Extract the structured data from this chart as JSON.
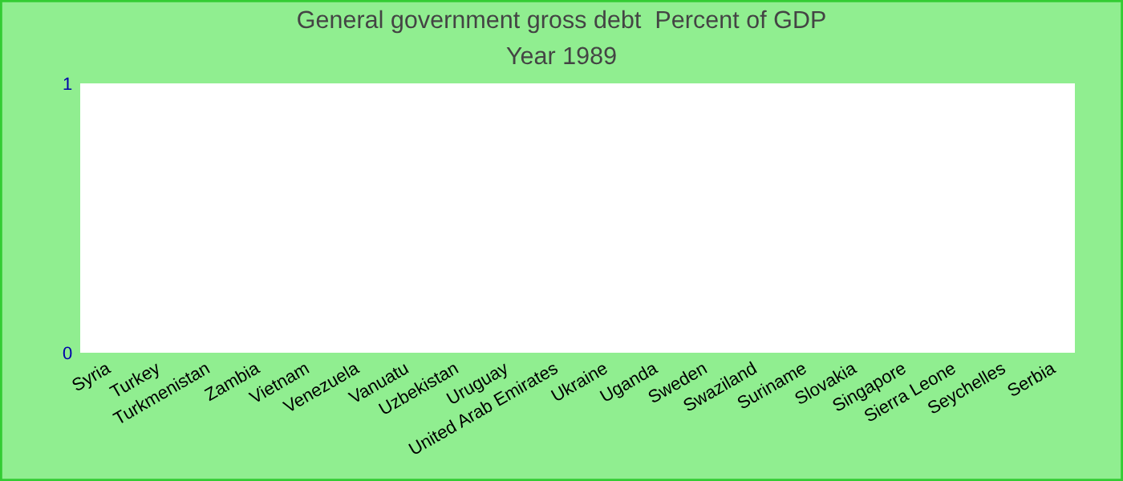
{
  "chart_data": {
    "type": "bar",
    "title": "General government gross debt  Percent of GDP",
    "subtitle": "Year 1989",
    "categories": [
      "Syria",
      "Turkey",
      "Turkmenistan",
      "Zambia",
      "Vietnam",
      "Venezuela",
      "Vanuatu",
      "Uzbekistan",
      "Uruguay",
      "United Arab Emirates",
      "Ukraine",
      "Uganda",
      "Sweden",
      "Swaziland",
      "Suriname",
      "Slovakia",
      "Singapore",
      "Sierra Leone",
      "Seychelles",
      "Serbia"
    ],
    "values": [
      0,
      0,
      0,
      0,
      0,
      0,
      0,
      0,
      0,
      0,
      0,
      0,
      0,
      0,
      0,
      0,
      0,
      0,
      0,
      0
    ],
    "ylim": [
      0,
      1
    ],
    "yticks": [
      0,
      1
    ],
    "grid": false
  }
}
